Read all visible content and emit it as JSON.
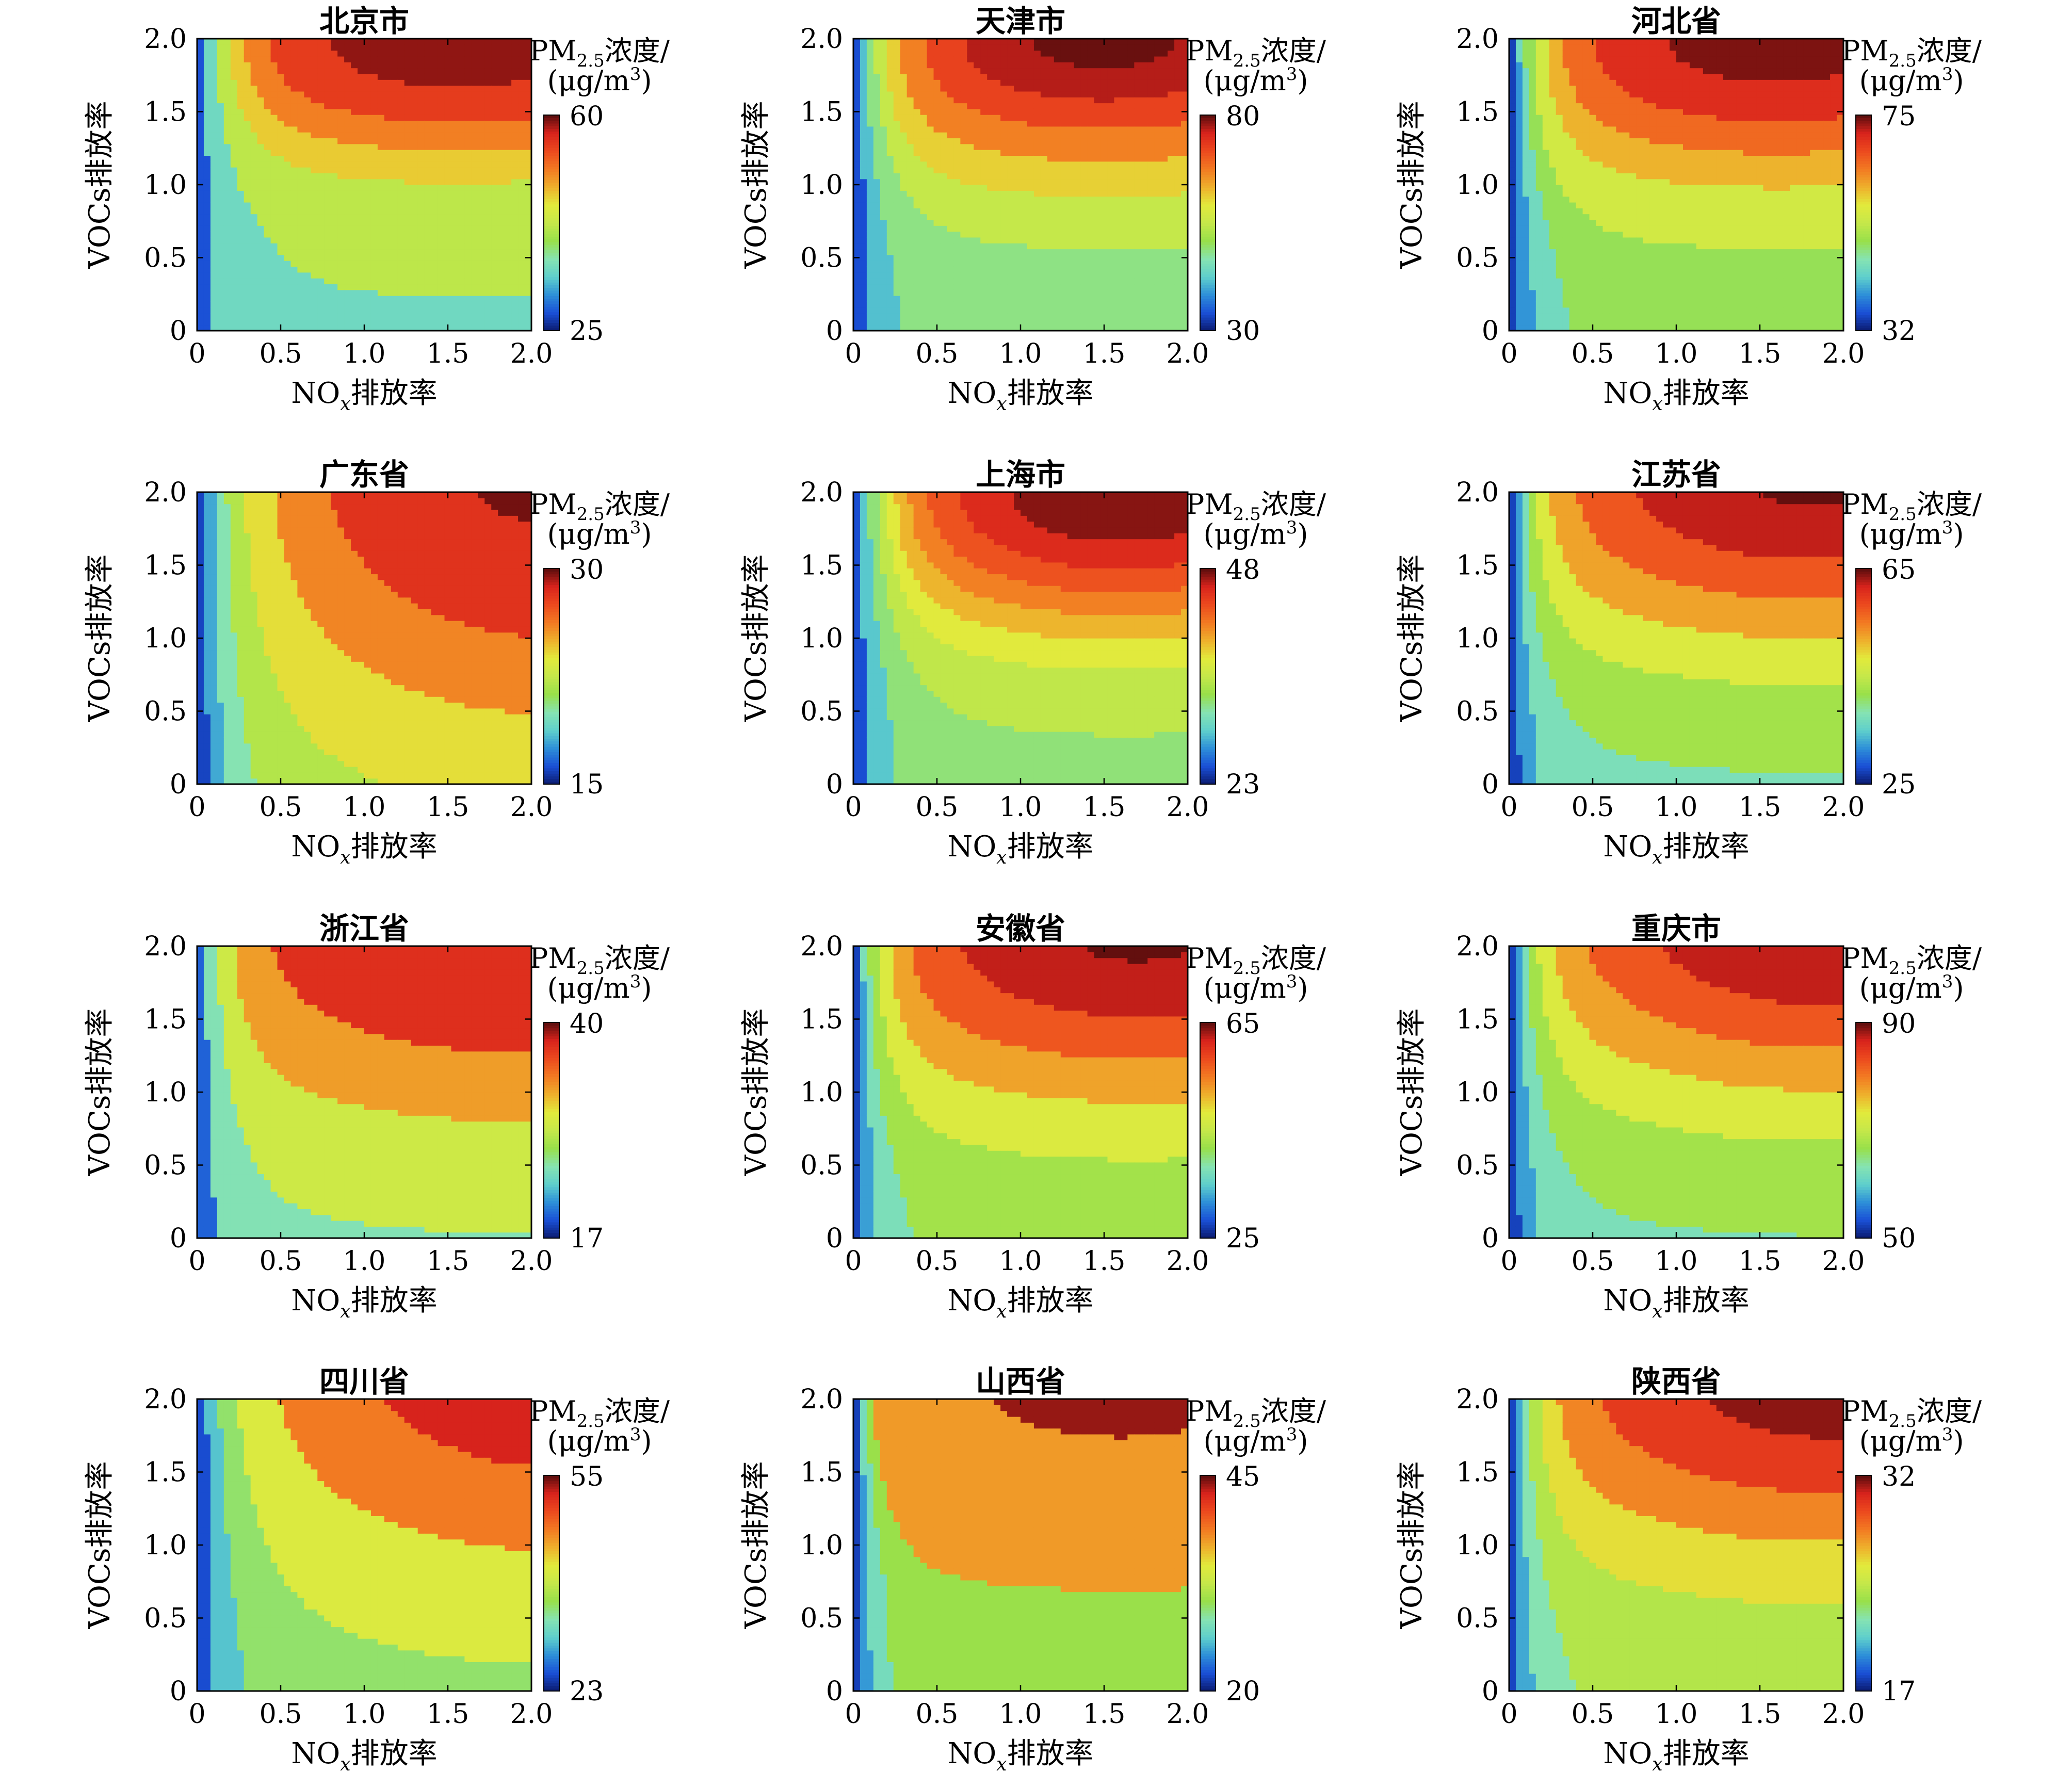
{
  "figure": {
    "axis_labels": {
      "x_prefix": "NO",
      "x_sub": "x",
      "x_suffix": "排放率",
      "y": "VOCs排放率"
    },
    "colorbar_title": {
      "line1_prefix": "PM",
      "line1_sub": "2.5",
      "line1_suffix": "浓度/",
      "line2_prefix": "(μg/m",
      "line2_sup": "3",
      "line2_suffix": ")"
    },
    "colormap": [
      "#0b1a6e",
      "#1a4fd6",
      "#2d8fd8",
      "#5fd0cc",
      "#86e3b2",
      "#98e04a",
      "#c5e84a",
      "#e2ea3c",
      "#eeb02c",
      "#f27a22",
      "#ec4a1e",
      "#d8231c",
      "#5a0d0d"
    ]
  },
  "chart_data": [
    {
      "type": "heatmap",
      "title": "北京市",
      "xlabel": "NOx排放率",
      "ylabel": "VOCs排放率",
      "x_ticks": [
        "0",
        "0.5",
        "1.0",
        "1.5",
        "2.0"
      ],
      "y_ticks": [
        "0",
        "0.5",
        "1.0",
        "1.5",
        "2.0"
      ],
      "xlim": [
        0,
        2
      ],
      "ylim": [
        0,
        2
      ],
      "colorbar": {
        "min": 25,
        "max": 60
      },
      "levels": [
        31,
        39,
        45,
        49,
        53,
        57.5
      ],
      "params": {
        "a": 6,
        "fxc": 1.55,
        "fxw": 2.2,
        "fyc": 2.0,
        "fyw": 0.9,
        "g": 8,
        "h": 5
      }
    },
    {
      "type": "heatmap",
      "title": "天津市",
      "xlabel": "NOx排放率",
      "ylabel": "VOCs排放率",
      "x_ticks": [
        "0",
        "0.5",
        "1.0",
        "1.5",
        "2.0"
      ],
      "y_ticks": [
        "0",
        "0.5",
        "1.0",
        "1.5",
        "2.0"
      ],
      "xlim": [
        0,
        2
      ],
      "ylim": [
        0,
        2
      ],
      "colorbar": {
        "min": 30,
        "max": 80
      },
      "levels": [
        38,
        45,
        52,
        58,
        64,
        70,
        75,
        79
      ],
      "params": {
        "a": 6,
        "fxc": 1.5,
        "fxw": 2.2,
        "fyc": 2.0,
        "fyw": 1.0,
        "g": 9,
        "h": 5
      }
    },
    {
      "type": "heatmap",
      "title": "河北省",
      "xlabel": "NOx排放率",
      "ylabel": "VOCs排放率",
      "x_ticks": [
        "0",
        "0.5",
        "1.0",
        "1.5",
        "2.0"
      ],
      "y_ticks": [
        "0",
        "0.5",
        "1.0",
        "1.5",
        "2.0"
      ],
      "xlim": [
        0,
        2
      ],
      "ylim": [
        0,
        2
      ],
      "colorbar": {
        "min": 32,
        "max": 75
      },
      "levels": [
        37,
        42,
        47,
        52,
        58,
        63,
        68,
        73
      ],
      "params": {
        "a": 6,
        "fxc": 1.6,
        "fxw": 2.3,
        "fyc": 2.0,
        "fyw": 1.0,
        "g": 8,
        "h": 5
      }
    },
    {
      "type": "heatmap",
      "title": "广东省",
      "xlabel": "NOx排放率",
      "ylabel": "VOCs排放率",
      "x_ticks": [
        "0",
        "0.5",
        "1.0",
        "1.5",
        "2.0"
      ],
      "y_ticks": [
        "0",
        "0.5",
        "1.0",
        "1.5",
        "2.0"
      ],
      "xlim": [
        0,
        2
      ],
      "ylim": [
        0,
        2
      ],
      "colorbar": {
        "min": 15,
        "max": 30
      },
      "levels": [
        17,
        19,
        21,
        23,
        25,
        27,
        29.5
      ],
      "params": {
        "a": 5,
        "fxc": 2.1,
        "fxw": 2.2,
        "fyc": 2.3,
        "fyw": 2.0,
        "g": 3,
        "h": 2
      }
    },
    {
      "type": "heatmap",
      "title": "上海市",
      "xlabel": "NOx排放率",
      "ylabel": "VOCs排放率",
      "x_ticks": [
        "0",
        "0.5",
        "1.0",
        "1.5",
        "2.0"
      ],
      "y_ticks": [
        "0",
        "0.5",
        "1.0",
        "1.5",
        "2.0"
      ],
      "xlim": [
        0,
        2
      ],
      "ylim": [
        0,
        2
      ],
      "colorbar": {
        "min": 23,
        "max": 48
      },
      "levels": [
        27,
        31,
        34,
        36.5,
        38.5,
        40.5,
        42.5,
        44.5,
        46.5
      ],
      "params": {
        "a": 6,
        "fxc": 1.6,
        "fxw": 2.0,
        "fyc": 2.0,
        "fyw": 1.0,
        "g": 6,
        "h": 4
      }
    },
    {
      "type": "heatmap",
      "title": "江苏省",
      "xlabel": "NOx排放率",
      "ylabel": "VOCs排放率",
      "x_ticks": [
        "0",
        "0.5",
        "1.0",
        "1.5",
        "2.0"
      ],
      "y_ticks": [
        "0",
        "0.5",
        "1.0",
        "1.5",
        "2.0"
      ],
      "xlim": [
        0,
        2
      ],
      "ylim": [
        0,
        2
      ],
      "colorbar": {
        "min": 25,
        "max": 65
      },
      "levels": [
        30,
        35,
        40,
        45,
        50,
        55,
        60,
        64.5
      ],
      "params": {
        "a": 7,
        "fxc": 1.8,
        "fxw": 2.3,
        "fyc": 2.1,
        "fyw": 1.2,
        "g": 8,
        "h": 4
      }
    },
    {
      "type": "heatmap",
      "title": "浙江省",
      "xlabel": "NOx排放率",
      "ylabel": "VOCs排放率",
      "x_ticks": [
        "0",
        "0.5",
        "1.0",
        "1.5",
        "2.0"
      ],
      "y_ticks": [
        "0",
        "0.5",
        "1.0",
        "1.5",
        "2.0"
      ],
      "xlim": [
        0,
        2
      ],
      "ylim": [
        0,
        2
      ],
      "colorbar": {
        "min": 17,
        "max": 40
      },
      "levels": [
        22,
        27,
        31,
        35
      ],
      "params": {
        "a": 7,
        "fxc": 1.9,
        "fxw": 2.5,
        "fyc": 2.2,
        "fyw": 1.4,
        "g": 5,
        "h": 3
      }
    },
    {
      "type": "heatmap",
      "title": "安徽省",
      "xlabel": "NOx排放率",
      "ylabel": "VOCs排放率",
      "x_ticks": [
        "0",
        "0.5",
        "1.0",
        "1.5",
        "2.0"
      ],
      "y_ticks": [
        "0",
        "0.5",
        "1.0",
        "1.5",
        "2.0"
      ],
      "xlim": [
        0,
        2
      ],
      "ylim": [
        0,
        2
      ],
      "colorbar": {
        "min": 25,
        "max": 65
      },
      "levels": [
        30,
        35,
        40,
        45,
        50,
        55,
        60,
        64.5
      ],
      "params": {
        "a": 7,
        "fxc": 1.7,
        "fxw": 2.3,
        "fyc": 2.1,
        "fyw": 1.2,
        "g": 8,
        "h": 5
      }
    },
    {
      "type": "heatmap",
      "title": "重庆市",
      "xlabel": "NOx排放率",
      "ylabel": "VOCs排放率",
      "x_ticks": [
        "0",
        "0.5",
        "1.0",
        "1.5",
        "2.0"
      ],
      "y_ticks": [
        "0",
        "0.5",
        "1.0",
        "1.5",
        "2.0"
      ],
      "xlim": [
        0,
        2
      ],
      "ylim": [
        0,
        2
      ],
      "colorbar": {
        "min": 50,
        "max": 90
      },
      "levels": [
        55,
        60,
        65,
        70,
        75,
        80,
        85,
        89.5
      ],
      "params": {
        "a": 7,
        "fxc": 1.9,
        "fxw": 2.3,
        "fyc": 2.2,
        "fyw": 1.3,
        "g": 8,
        "h": 4
      }
    },
    {
      "type": "heatmap",
      "title": "四川省",
      "xlabel": "NOx排放率",
      "ylabel": "VOCs排放率",
      "x_ticks": [
        "0",
        "0.5",
        "1.0",
        "1.5",
        "2.0"
      ],
      "y_ticks": [
        "0",
        "0.5",
        "1.0",
        "1.5",
        "2.0"
      ],
      "xlim": [
        0,
        2
      ],
      "ylim": [
        0,
        2
      ],
      "colorbar": {
        "min": 23,
        "max": 55
      },
      "levels": [
        28,
        33,
        38,
        44,
        50,
        54.7
      ],
      "params": {
        "a": 5,
        "fxc": 2.2,
        "fxw": 2.3,
        "fyc": 2.4,
        "fyw": 1.6,
        "g": 5,
        "h": 3
      }
    },
    {
      "type": "heatmap",
      "title": "山西省",
      "xlabel": "NOx排放率",
      "ylabel": "VOCs排放率",
      "x_ticks": [
        "0",
        "0.5",
        "1.0",
        "1.5",
        "2.0"
      ],
      "y_ticks": [
        "0",
        "0.5",
        "1.0",
        "1.5",
        "2.0"
      ],
      "xlim": [
        0,
        2
      ],
      "ylim": [
        0,
        2
      ],
      "colorbar": {
        "min": 20,
        "max": 45
      },
      "levels": [
        23,
        26,
        29,
        32,
        43
      ],
      "params": {
        "a": 8,
        "fxc": 1.6,
        "fxw": 2.0,
        "fyc": 2.1,
        "fyw": 0.9,
        "g": 4,
        "h": 3
      }
    },
    {
      "type": "heatmap",
      "title": "陕西省",
      "xlabel": "NOx排放率",
      "ylabel": "VOCs排放率",
      "x_ticks": [
        "0",
        "0.5",
        "1.0",
        "1.5",
        "2.0"
      ],
      "y_ticks": [
        "0",
        "0.5",
        "1.0",
        "1.5",
        "2.0"
      ],
      "xlim": [
        0,
        2
      ],
      "ylim": [
        0,
        2
      ],
      "colorbar": {
        "min": 17,
        "max": 32
      },
      "levels": [
        19,
        21,
        23,
        25,
        27,
        29,
        31
      ],
      "params": {
        "a": 7,
        "fxc": 1.9,
        "fxw": 2.3,
        "fyc": 2.2,
        "fyw": 1.3,
        "g": 3,
        "h": 2
      }
    }
  ]
}
